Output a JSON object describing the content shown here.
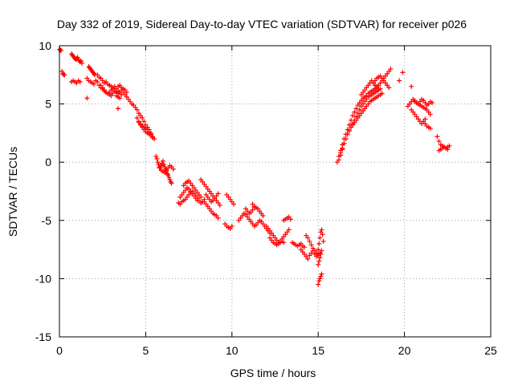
{
  "chart_data": {
    "type": "scatter",
    "title": "Day 332 of 2019, Sidereal Day-to-day VTEC variation (SDTVAR) for receiver p026",
    "xlabel": "GPS time / hours",
    "ylabel": "SDTVAR / TECUs",
    "xlim": [
      0,
      25
    ],
    "ylim": [
      -15,
      10
    ],
    "xticks": [
      0,
      5,
      10,
      15,
      20,
      25
    ],
    "yticks": [
      -15,
      -10,
      -5,
      0,
      5,
      10
    ],
    "xtick_labels": [
      "0",
      "5",
      "10",
      "15",
      "20",
      "25"
    ],
    "ytick_labels": [
      "-15",
      "-10",
      "-5",
      "0",
      "5",
      "10"
    ],
    "grid": true,
    "marker": "plus",
    "color": "#ff0000",
    "series": [
      {
        "name": "SDTVAR",
        "x": [
          0.02,
          0.05,
          0.1,
          0.15,
          0.2,
          0.25,
          0.3,
          0.7,
          0.75,
          0.8,
          0.85,
          0.9,
          0.95,
          1.0,
          1.05,
          1.1,
          1.15,
          1.2,
          1.25,
          1.3,
          0.7,
          0.8,
          0.9,
          1.0,
          1.1,
          1.2,
          1.7,
          1.75,
          1.8,
          1.85,
          1.9,
          1.95,
          2.0,
          2.05,
          1.6,
          1.7,
          1.8,
          1.9,
          2.0,
          2.1,
          2.2,
          2.3,
          2.4,
          2.2,
          2.3,
          2.4,
          2.5,
          2.6,
          2.7,
          2.8,
          2.9,
          3.0,
          3.1,
          3.2,
          3.3,
          3.4,
          3.5,
          3.6,
          3.7,
          3.8,
          3.9,
          2.5,
          2.6,
          2.7,
          2.8,
          2.9,
          3.0,
          3.1,
          3.2,
          3.3,
          3.4,
          3.5,
          2.4,
          2.5,
          2.6,
          2.7,
          2.8,
          2.9,
          3.0,
          3.1,
          3.2,
          3.3,
          3.4,
          3.5,
          3.6,
          3.4,
          3.5,
          3.6,
          3.7,
          3.8,
          3.9,
          4.0,
          4.1,
          4.2,
          4.3,
          4.4,
          4.5,
          4.6,
          4.7,
          4.8,
          4.9,
          5.0,
          5.1,
          5.2,
          5.3,
          4.5,
          4.6,
          4.7,
          4.8,
          4.9,
          5.0,
          5.1,
          5.2,
          5.3,
          5.4,
          5.5,
          4.6,
          4.7,
          4.8,
          4.9,
          5.0,
          5.1,
          5.2,
          5.3,
          5.4,
          1.6,
          3.4,
          5.6,
          5.65,
          5.7,
          5.75,
          5.8,
          5.85,
          5.9,
          5.95,
          6.0,
          6.05,
          6.1,
          6.15,
          6.2,
          6.25,
          6.3,
          6.35,
          6.4,
          6.45,
          6.5,
          5.8,
          5.9,
          6.0,
          6.1,
          6.2,
          6.3,
          6.4,
          6.5,
          6.6,
          6.9,
          7.0,
          7.1,
          7.2,
          7.3,
          7.4,
          7.5,
          7.6,
          7.7,
          7.8,
          7.9,
          8.0,
          8.1,
          8.2,
          8.3,
          8.4,
          7.0,
          7.1,
          7.2,
          7.3,
          7.4,
          7.5,
          7.6,
          7.7,
          7.8,
          7.9,
          8.0,
          7.2,
          7.3,
          7.4,
          7.5,
          7.6,
          7.7,
          7.8,
          7.9,
          8.0,
          8.1,
          8.2,
          8.2,
          8.3,
          8.4,
          8.5,
          8.6,
          8.7,
          8.8,
          8.9,
          9.0,
          9.1,
          9.2,
          9.3,
          8.4,
          8.5,
          8.6,
          8.7,
          8.8,
          8.9,
          9.0,
          9.1,
          9.2,
          8.5,
          8.6,
          8.7,
          8.8,
          8.9,
          9.0,
          9.1,
          9.2,
          9.6,
          9.7,
          9.8,
          9.9,
          10.0,
          9.7,
          9.8,
          9.9,
          10.0,
          10.1,
          10.4,
          10.5,
          10.6,
          10.7,
          10.8,
          10.9,
          11.0,
          11.1,
          11.2,
          11.3,
          11.4,
          11.5,
          11.6,
          11.7,
          11.8,
          11.9,
          12.0,
          12.1,
          12.2,
          10.8,
          10.9,
          11.0,
          11.1,
          11.2,
          11.3,
          11.2,
          11.3,
          11.4,
          11.5,
          11.6,
          11.7,
          11.8,
          12.0,
          12.1,
          12.2,
          12.3,
          12.4,
          12.5,
          12.6,
          12.7,
          12.8,
          12.9,
          13.0,
          13.1,
          13.2,
          13.3,
          12.2,
          12.3,
          12.4,
          12.5,
          12.6,
          12.7,
          12.8,
          12.9,
          13.0,
          13.0,
          13.1,
          13.2,
          13.3,
          13.4,
          13.5,
          13.6,
          13.7,
          13.8,
          13.9,
          14.0,
          14.1,
          14.2,
          14.0,
          14.1,
          14.2,
          14.3,
          14.4,
          14.5,
          14.6,
          14.7,
          14.8,
          14.9,
          15.0,
          15.1,
          14.3,
          14.4,
          14.5,
          14.6,
          14.7,
          14.8,
          14.9,
          15.0,
          15.0,
          15.05,
          15.1,
          15.15,
          15.2,
          15.25,
          15.3,
          15.0,
          15.05,
          15.1,
          15.15,
          15.2,
          15.0,
          15.05,
          15.1,
          15.15,
          15.2,
          16.1,
          16.2,
          16.3,
          16.4,
          16.5,
          16.6,
          16.7,
          16.8,
          16.9,
          17.0,
          17.1,
          17.2,
          17.3,
          17.4,
          17.5,
          17.6,
          17.7,
          17.8,
          17.9,
          18.0,
          18.1,
          18.2,
          18.3,
          18.4,
          18.5,
          18.6,
          18.7,
          18.8,
          18.9,
          19.0,
          19.1,
          19.2,
          16.2,
          16.3,
          16.4,
          16.5,
          16.6,
          16.7,
          16.8,
          16.9,
          17.0,
          17.1,
          17.2,
          17.3,
          17.4,
          17.5,
          17.6,
          17.7,
          17.8,
          17.9,
          18.0,
          18.1,
          18.2,
          18.3,
          18.4,
          18.5,
          18.6,
          16.3,
          16.4,
          16.5,
          16.6,
          16.7,
          16.8,
          16.9,
          17.0,
          17.1,
          17.2,
          17.3,
          17.4,
          17.5,
          17.6,
          17.7,
          17.8,
          17.9,
          18.0,
          18.1,
          18.2,
          18.3,
          18.4,
          18.5,
          18.6,
          18.7,
          17.5,
          17.6,
          17.7,
          17.8,
          17.9,
          18.0,
          18.1,
          18.2,
          18.3,
          18.4,
          18.5,
          18.2,
          18.3,
          18.4,
          18.5,
          18.6,
          18.7,
          18.8,
          18.9,
          19.0,
          19.1,
          19.7,
          19.9,
          20.4,
          20.2,
          20.3,
          20.4,
          20.5,
          20.6,
          20.7,
          20.8,
          20.9,
          21.0,
          21.1,
          21.2,
          21.3,
          21.4,
          21.5,
          21.6,
          20.4,
          20.5,
          20.6,
          20.7,
          20.8,
          20.9,
          21.0,
          21.1,
          21.2,
          20.6,
          20.7,
          20.8,
          20.9,
          21.0,
          21.1,
          21.2,
          21.3,
          21.4,
          21.5,
          20.3,
          21.2,
          21.3,
          21.4,
          21.5,
          21.9,
          22.0,
          22.1,
          22.2,
          22.3,
          22.4,
          22.5,
          22.6,
          22.0,
          22.1,
          22.2,
          22.3,
          22.4,
          22.5
        ],
        "y": [
          9.7,
          9.6,
          9.6,
          7.8,
          7.6,
          7.5,
          7.5,
          9.3,
          9.2,
          9.1,
          9.0,
          8.9,
          8.8,
          8.9,
          9.0,
          8.8,
          8.7,
          8.6,
          8.7,
          8.5,
          6.9,
          7.0,
          6.9,
          6.8,
          7.0,
          6.9,
          8.2,
          8.1,
          8.0,
          7.9,
          7.8,
          7.7,
          7.6,
          7.5,
          7.2,
          7.0,
          6.9,
          6.8,
          6.7,
          7.0,
          6.9,
          6.6,
          6.4,
          7.5,
          7.3,
          7.2,
          7.0,
          6.8,
          6.9,
          6.7,
          6.6,
          6.5,
          6.4,
          6.5,
          6.3,
          6.5,
          6.6,
          6.4,
          6.3,
          6.2,
          6.0,
          6.3,
          6.1,
          6.0,
          5.9,
          5.8,
          5.7,
          5.9,
          6.1,
          5.7,
          5.6,
          5.5,
          6.6,
          6.4,
          6.2,
          6.0,
          5.9,
          6.0,
          6.2,
          6.3,
          6.1,
          6.0,
          5.9,
          6.0,
          5.8,
          6.1,
          6.0,
          6.2,
          6.0,
          5.8,
          5.6,
          5.4,
          5.2,
          5.0,
          4.9,
          4.7,
          4.5,
          4.2,
          4.0,
          3.8,
          3.5,
          3.2,
          3.0,
          2.8,
          2.5,
          3.8,
          3.5,
          3.3,
          3.1,
          3.0,
          2.9,
          2.8,
          2.6,
          2.4,
          2.2,
          2.0,
          3.4,
          3.2,
          3.0,
          2.8,
          2.6,
          2.5,
          2.4,
          2.3,
          2.1,
          5.5,
          4.6,
          0.5,
          0.3,
          0.0,
          -0.2,
          -0.4,
          -0.5,
          -0.3,
          -0.1,
          0.1,
          -0.2,
          -0.4,
          -0.6,
          -0.8,
          -1.0,
          -1.1,
          -1.3,
          -1.5,
          -1.7,
          -1.8,
          -0.5,
          -0.7,
          -0.8,
          -0.9,
          -0.7,
          -0.5,
          -0.3,
          -0.4,
          -0.6,
          -3.5,
          -3.6,
          -3.4,
          -3.3,
          -3.2,
          -3.0,
          -2.8,
          -2.6,
          -2.5,
          -2.7,
          -2.9,
          -3.1,
          -3.3,
          -3.5,
          -3.4,
          -3.2,
          -3.0,
          -2.8,
          -2.6,
          -2.4,
          -2.2,
          -2.3,
          -2.5,
          -2.7,
          -2.9,
          -3.1,
          -3.3,
          -2.0,
          -1.8,
          -1.7,
          -1.6,
          -1.8,
          -2.0,
          -2.2,
          -2.4,
          -2.6,
          -2.8,
          -3.0,
          -1.5,
          -1.7,
          -1.9,
          -2.1,
          -2.3,
          -2.5,
          -2.7,
          -2.9,
          -3.1,
          -3.3,
          -3.5,
          -3.7,
          -3.4,
          -3.6,
          -3.8,
          -4.0,
          -4.2,
          -4.4,
          -4.5,
          -4.6,
          -4.8,
          -2.8,
          -3.0,
          -3.2,
          -3.4,
          -3.3,
          -3.1,
          -2.9,
          -2.7,
          -5.3,
          -5.5,
          -5.6,
          -5.7,
          -5.5,
          -2.8,
          -3.0,
          -3.2,
          -3.4,
          -3.6,
          -5.0,
          -4.8,
          -4.6,
          -4.4,
          -4.5,
          -4.7,
          -4.9,
          -5.1,
          -5.3,
          -5.5,
          -5.4,
          -5.2,
          -5.0,
          -5.1,
          -5.3,
          -5.5,
          -5.7,
          -5.9,
          -6.1,
          -4.0,
          -4.2,
          -4.4,
          -4.3,
          -4.1,
          -3.9,
          -3.6,
          -3.8,
          -3.9,
          -4.0,
          -4.2,
          -4.4,
          -4.6,
          -5.5,
          -5.7,
          -5.9,
          -6.1,
          -6.3,
          -6.5,
          -6.7,
          -6.9,
          -6.8,
          -6.6,
          -6.4,
          -6.2,
          -6.0,
          -5.8,
          -6.5,
          -6.7,
          -6.9,
          -7.0,
          -7.1,
          -7.0,
          -6.9,
          -6.8,
          -6.9,
          -5.0,
          -4.9,
          -4.8,
          -4.7,
          -4.9,
          -6.9,
          -7.0,
          -7.1,
          -7.2,
          -7.1,
          -7.0,
          -7.2,
          -7.3,
          -7.5,
          -7.7,
          -7.9,
          -8.1,
          -8.3,
          -8.0,
          -7.8,
          -7.6,
          -7.9,
          -8.1,
          -8.0,
          -7.8,
          -6.3,
          -6.5,
          -6.8,
          -7.1,
          -7.4,
          -7.6,
          -7.8,
          -7.9,
          -7.5,
          -7.0,
          -6.5,
          -6.0,
          -5.8,
          -6.2,
          -6.8,
          -10.5,
          -10.2,
          -10.0,
          -9.8,
          -9.6,
          -8.8,
          -8.5,
          -8.2,
          -7.9,
          -7.6,
          0.0,
          0.5,
          1.0,
          1.5,
          2.0,
          2.4,
          2.8,
          3.2,
          3.6,
          4.0,
          4.3,
          4.6,
          4.9,
          5.1,
          5.3,
          5.5,
          5.6,
          5.7,
          5.9,
          6.0,
          6.1,
          6.2,
          6.3,
          6.5,
          6.6,
          6.8,
          7.0,
          7.2,
          7.4,
          7.6,
          7.8,
          8.0,
          0.2,
          0.6,
          1.1,
          1.6,
          2.0,
          2.4,
          2.7,
          3.0,
          3.3,
          3.6,
          3.9,
          4.2,
          4.5,
          4.8,
          5.0,
          5.2,
          5.4,
          5.6,
          5.7,
          5.8,
          5.9,
          6.0,
          6.1,
          6.2,
          6.3,
          0.8,
          1.2,
          1.6,
          2.0,
          2.4,
          2.7,
          3.0,
          3.2,
          3.4,
          3.6,
          3.8,
          4.0,
          4.2,
          4.4,
          4.6,
          4.8,
          5.0,
          5.2,
          5.3,
          5.4,
          5.5,
          5.6,
          5.7,
          5.8,
          5.9,
          5.8,
          6.0,
          6.2,
          6.4,
          6.6,
          6.8,
          7.0,
          6.8,
          6.6,
          6.4,
          6.2,
          6.8,
          7.0,
          7.2,
          7.3,
          7.4,
          7.2,
          7.0,
          6.8,
          6.6,
          6.4,
          7.0,
          7.7,
          6.5,
          4.8,
          5.0,
          5.2,
          5.4,
          5.3,
          5.1,
          5.0,
          5.2,
          5.4,
          5.3,
          5.1,
          4.9,
          5.0,
          5.2,
          5.1,
          4.5,
          4.3,
          4.1,
          3.9,
          3.7,
          3.5,
          3.3,
          3.5,
          3.7,
          5.2,
          5.1,
          5.0,
          4.9,
          4.8,
          4.7,
          4.6,
          4.5,
          4.3,
          4.1,
          5.0,
          3.3,
          3.1,
          3.0,
          2.9,
          2.2,
          1.8,
          1.5,
          1.4,
          1.3,
          1.2,
          1.3,
          1.4,
          1.0,
          1.1,
          1.2,
          1.3,
          1.2,
          1.1
        ]
      }
    ]
  }
}
